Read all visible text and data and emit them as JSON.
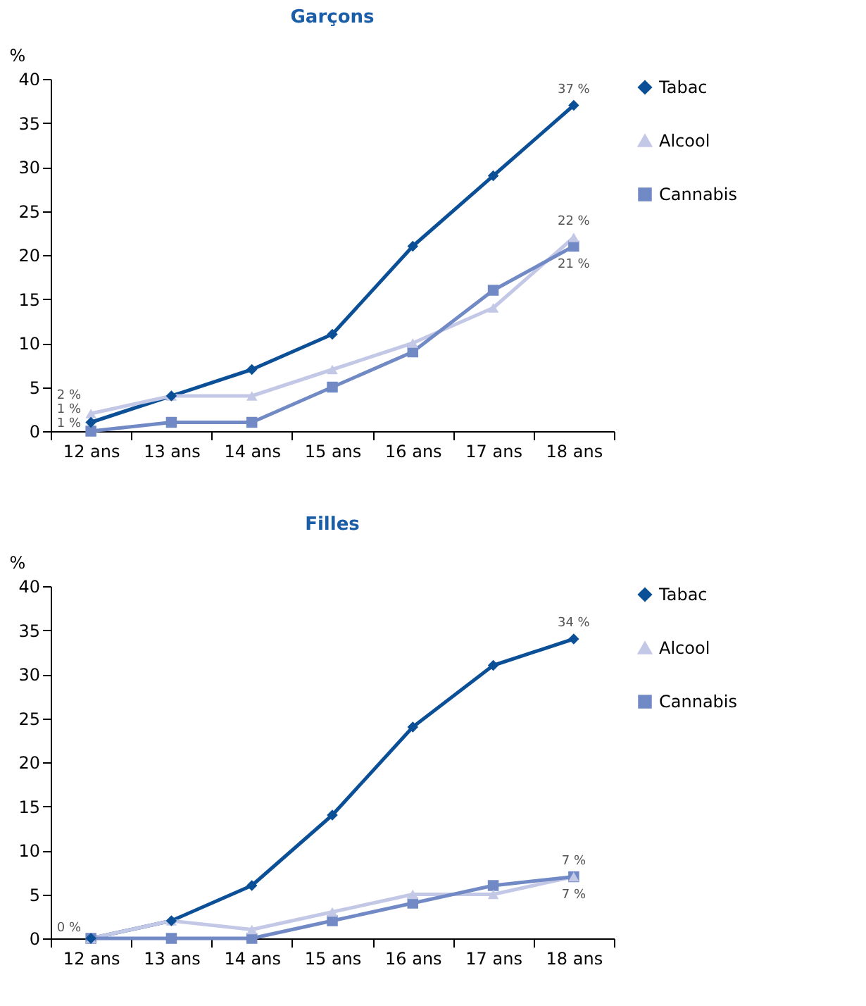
{
  "chart_data": [
    {
      "type": "line",
      "title": "Garçons",
      "ylabel": "%",
      "categories": [
        "12 ans",
        "13 ans",
        "14 ans",
        "15 ans",
        "16 ans",
        "17 ans",
        "18 ans"
      ],
      "ylim": [
        0,
        40
      ],
      "yticks": [
        0,
        5,
        10,
        15,
        20,
        25,
        30,
        35,
        40
      ],
      "grid": false,
      "legend": "right",
      "series": [
        {
          "name": "Tabac",
          "color": "#0b4f96",
          "marker": "diamond",
          "values": [
            1,
            4,
            7,
            11,
            21,
            29,
            37
          ]
        },
        {
          "name": "Alcool",
          "color": "#c3c8e6",
          "marker": "triangle",
          "values": [
            2,
            4,
            4,
            7,
            10,
            14,
            22
          ]
        },
        {
          "name": "Cannabis",
          "color": "#7189c4",
          "marker": "square",
          "values": [
            0,
            1,
            1,
            5,
            9,
            16,
            21
          ]
        }
      ],
      "annotations": [
        {
          "text": "2 %",
          "x": "12 ans",
          "y": 2
        },
        {
          "text": "1 %",
          "x": "12 ans",
          "y": 1
        },
        {
          "text": "1 %",
          "x": "12 ans",
          "y": 0
        },
        {
          "text": "37 %",
          "x": "18 ans",
          "y": 37
        },
        {
          "text": "22 %",
          "x": "18 ans",
          "y": 22
        },
        {
          "text": "21 %",
          "x": "18 ans",
          "y": 21
        }
      ]
    },
    {
      "type": "line",
      "title": "Filles",
      "ylabel": "%",
      "categories": [
        "12 ans",
        "13 ans",
        "14 ans",
        "15 ans",
        "16 ans",
        "17 ans",
        "18 ans"
      ],
      "ylim": [
        0,
        40
      ],
      "yticks": [
        0,
        5,
        10,
        15,
        20,
        25,
        30,
        35,
        40
      ],
      "grid": false,
      "legend": "right",
      "series": [
        {
          "name": "Tabac",
          "color": "#0b4f96",
          "marker": "diamond",
          "values": [
            0,
            2,
            6,
            14,
            24,
            31,
            34
          ]
        },
        {
          "name": "Alcool",
          "color": "#c3c8e6",
          "marker": "triangle",
          "values": [
            0,
            2,
            1,
            3,
            5,
            5,
            7
          ]
        },
        {
          "name": "Cannabis",
          "color": "#7189c4",
          "marker": "square",
          "values": [
            0,
            0,
            0,
            2,
            4,
            6,
            7
          ]
        }
      ],
      "annotations": [
        {
          "text": "0 %",
          "x": "12 ans",
          "y": 0
        },
        {
          "text": "34 %",
          "x": "18 ans",
          "y": 34
        },
        {
          "text": "7 %",
          "x": "18 ans",
          "y": 7
        },
        {
          "text": "7 %",
          "x": "18 ans",
          "y": 7
        }
      ]
    }
  ]
}
